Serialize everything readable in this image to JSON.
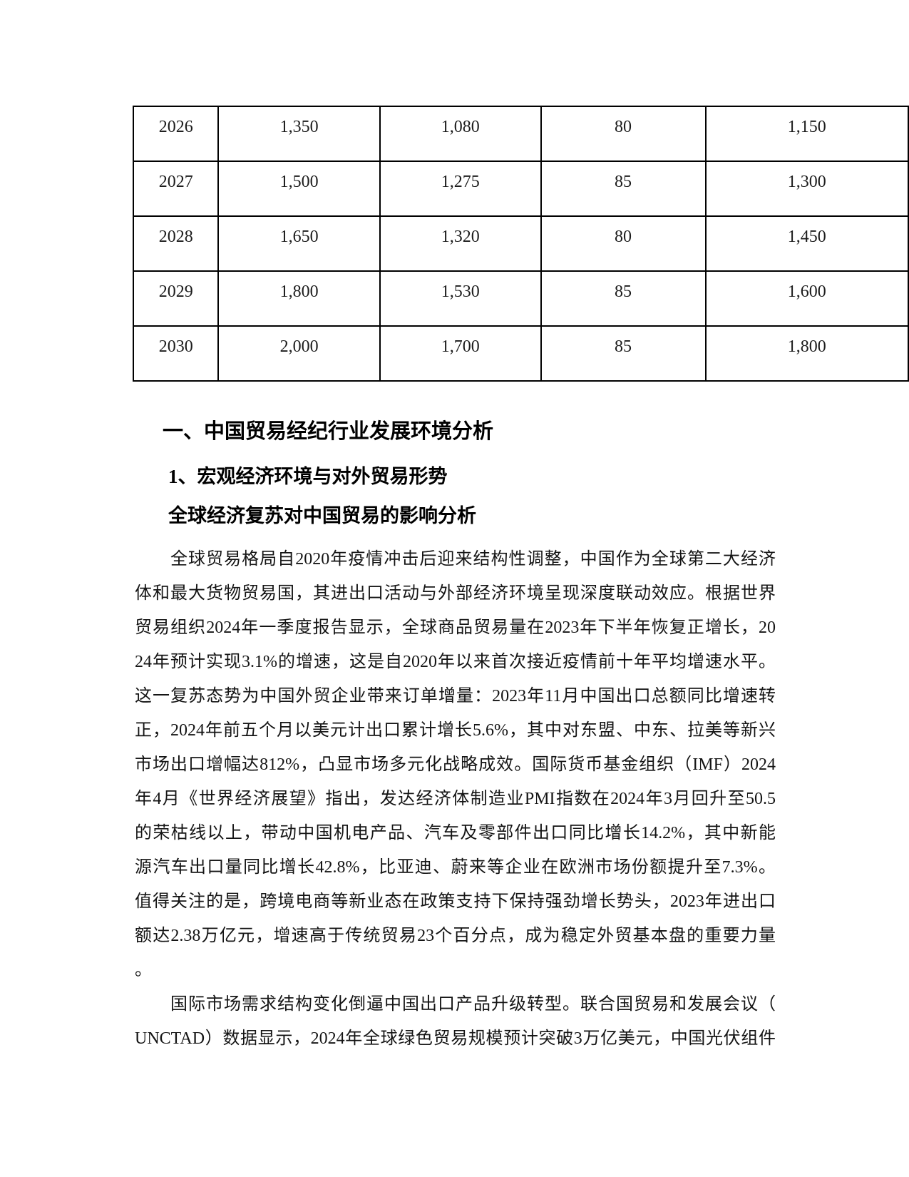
{
  "forecast_table": {
    "rows": [
      [
        "2026",
        "1,350",
        "1,080",
        "80",
        "1,150"
      ],
      [
        "2027",
        "1,500",
        "1,275",
        "85",
        "1,300"
      ],
      [
        "2028",
        "1,650",
        "1,320",
        "80",
        "1,450"
      ],
      [
        "2029",
        "1,800",
        "1,530",
        "85",
        "1,600"
      ],
      [
        "2030",
        "2,000",
        "1,700",
        "85",
        "1,800"
      ]
    ]
  },
  "headings": {
    "h1": "一、中国贸易经纪行业发展环境分析",
    "h2": "1、宏观经济环境与对外贸易形势",
    "h3": "全球经济复苏对中国贸易的影响分析"
  },
  "paragraphs": [
    {
      "last_line_stretch": false,
      "lines": [
        "全球贸易格局自2020年疫情冲击后迎来结构性调整，中国作为全球第二大经济",
        "体和最大货物贸易国，其进出口活动与外部经济环境呈现深度联动效应。根据世界",
        "贸易组织2024年一季度报告显示，全球商品贸易量在2023年下半年恢复正增长，20",
        "24年预计实现3.1%的增速，这是自2020年以来首次接近疫情前十年平均增速水平。",
        "这一复苏态势为中国外贸企业带来订单增量：2023年11月中国出口总额同比增速转",
        "正，2024年前五个月以美元计出口累计增长5.6%，其中对东盟、中东、拉美等新兴",
        "市场出口增幅达812%，凸显市场多元化战略成效。国际货币基金组织（IMF）2024",
        "年4月《世界经济展望》指出，发达经济体制造业PMI指数在2024年3月回升至50.5",
        "的荣枯线以上，带动中国机电产品、汽车及零部件出口同比增长14.2%，其中新能",
        "源汽车出口量同比增长42.8%，比亚迪、蔚来等企业在欧洲市场份额提升至7.3%。",
        "值得关注的是，跨境电商等新业态在政策支持下保持强劲增长势头，2023年进出口",
        "额达2.38万亿元，增速高于传统贸易23个百分点，成为稳定外贸基本盘的重要力量",
        "。"
      ]
    },
    {
      "last_line_stretch": true,
      "lines": [
        "国际市场需求结构变化倒逼中国出口产品升级转型。联合国贸易和发展会议（",
        "UNCTAD）数据显示，2024年全球绿色贸易规模预计突破3万亿美元，中国光伏组件"
      ]
    }
  ]
}
